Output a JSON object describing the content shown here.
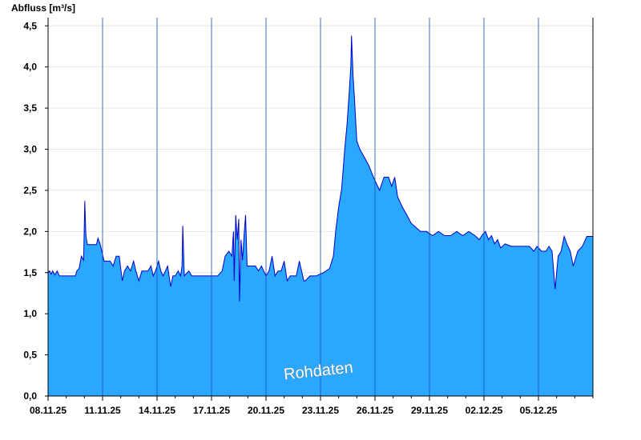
{
  "chart_data": {
    "type": "area",
    "ylabel": "Abfluss [m³/s]",
    "watermark": "Rohdaten",
    "ylim": [
      0,
      4.6
    ],
    "yticks": [
      0,
      0.5,
      1.0,
      1.5,
      2.0,
      2.5,
      3.0,
      3.5,
      4.0,
      4.5
    ],
    "ytick_labels": [
      "0,0",
      "0,5",
      "1,0",
      "1,5",
      "2,0",
      "2,5",
      "3,0",
      "3,5",
      "4,0",
      "4,5"
    ],
    "xlim": [
      "2025-11-08",
      "2025-12-08"
    ],
    "xticks": [
      "2025-11-08",
      "2025-11-11",
      "2025-11-14",
      "2025-11-17",
      "2025-11-20",
      "2025-11-23",
      "2025-11-26",
      "2025-11-29",
      "2025-12-02",
      "2025-12-05"
    ],
    "xtick_labels": [
      "08.11.25",
      "11.11.25",
      "14.11.25",
      "17.11.25",
      "20.11.25",
      "23.11.25",
      "26.11.25",
      "29.11.25",
      "02.12.25",
      "05.12.25"
    ],
    "grid": true,
    "fill_color": "#2aa7ff",
    "line_color": "#0000cc",
    "series": [
      {
        "points": [
          [
            "2025-11-08 00:00",
            1.5
          ],
          [
            "2025-11-08 02:00",
            1.52
          ],
          [
            "2025-11-08 04:00",
            1.48
          ],
          [
            "2025-11-08 06:00",
            1.52
          ],
          [
            "2025-11-08 09:00",
            1.47
          ],
          [
            "2025-11-08 12:00",
            1.52
          ],
          [
            "2025-11-08 15:00",
            1.46
          ],
          [
            "2025-11-08 20:00",
            1.46
          ],
          [
            "2025-11-09 04:00",
            1.46
          ],
          [
            "2025-11-09 12:00",
            1.46
          ],
          [
            "2025-11-09 14:00",
            1.52
          ],
          [
            "2025-11-09 17:00",
            1.55
          ],
          [
            "2025-11-09 20:00",
            1.7
          ],
          [
            "2025-11-09 23:00",
            1.65
          ],
          [
            "2025-11-10 00:30",
            2.37
          ],
          [
            "2025-11-10 02:00",
            1.95
          ],
          [
            "2025-11-10 04:00",
            1.84
          ],
          [
            "2025-11-10 10:00",
            1.84
          ],
          [
            "2025-11-10 16:00",
            1.84
          ],
          [
            "2025-11-10 18:00",
            1.92
          ],
          [
            "2025-11-10 21:00",
            1.84
          ],
          [
            "2025-11-11 02:00",
            1.64
          ],
          [
            "2025-11-11 10:00",
            1.64
          ],
          [
            "2025-11-11 14:00",
            1.58
          ],
          [
            "2025-11-11 18:00",
            1.7
          ],
          [
            "2025-11-11 22:00",
            1.7
          ],
          [
            "2025-11-12 02:00",
            1.4
          ],
          [
            "2025-11-12 05:00",
            1.52
          ],
          [
            "2025-11-12 09:00",
            1.58
          ],
          [
            "2025-11-12 13:00",
            1.52
          ],
          [
            "2025-11-12 17:00",
            1.64
          ],
          [
            "2025-11-12 20:00",
            1.52
          ],
          [
            "2025-11-13 00:00",
            1.4
          ],
          [
            "2025-11-13 04:00",
            1.52
          ],
          [
            "2025-11-13 08:00",
            1.52
          ],
          [
            "2025-11-13 12:00",
            1.52
          ],
          [
            "2025-11-13 16:00",
            1.58
          ],
          [
            "2025-11-13 19:00",
            1.46
          ],
          [
            "2025-11-13 22:00",
            1.52
          ],
          [
            "2025-11-14 02:00",
            1.64
          ],
          [
            "2025-11-14 05:00",
            1.52
          ],
          [
            "2025-11-14 08:00",
            1.46
          ],
          [
            "2025-11-14 11:00",
            1.52
          ],
          [
            "2025-11-14 14:00",
            1.58
          ],
          [
            "2025-11-14 18:00",
            1.33
          ],
          [
            "2025-11-14 21:00",
            1.46
          ],
          [
            "2025-11-15 00:00",
            1.46
          ],
          [
            "2025-11-15 04:00",
            1.52
          ],
          [
            "2025-11-15 07:00",
            1.46
          ],
          [
            "2025-11-15 09:00",
            1.58
          ],
          [
            "2025-11-15 10:00",
            2.07
          ],
          [
            "2025-11-15 12:00",
            1.46
          ],
          [
            "2025-11-15 18:00",
            1.52
          ],
          [
            "2025-11-15 22:00",
            1.46
          ],
          [
            "2025-11-16 08:00",
            1.46
          ],
          [
            "2025-11-16 20:00",
            1.46
          ],
          [
            "2025-11-17 08:00",
            1.46
          ],
          [
            "2025-11-17 14:00",
            1.52
          ],
          [
            "2025-11-17 18:00",
            1.7
          ],
          [
            "2025-11-17 23:00",
            1.76
          ],
          [
            "2025-11-18 03:00",
            1.7
          ],
          [
            "2025-11-18 05:00",
            2.0
          ],
          [
            "2025-11-18 06:00",
            1.4
          ],
          [
            "2025-11-18 08:00",
            2.2
          ],
          [
            "2025-11-18 10:00",
            1.9
          ],
          [
            "2025-11-18 12:00",
            2.15
          ],
          [
            "2025-11-18 13:00",
            1.15
          ],
          [
            "2025-11-18 15:00",
            1.9
          ],
          [
            "2025-11-18 17:00",
            1.65
          ],
          [
            "2025-11-18 19:00",
            1.95
          ],
          [
            "2025-11-18 21:00",
            2.2
          ],
          [
            "2025-11-18 23:00",
            1.58
          ],
          [
            "2025-11-19 04:00",
            1.58
          ],
          [
            "2025-11-19 10:00",
            1.58
          ],
          [
            "2025-11-19 14:00",
            1.52
          ],
          [
            "2025-11-19 18:00",
            1.58
          ],
          [
            "2025-11-20 00:00",
            1.46
          ],
          [
            "2025-11-20 04:00",
            1.52
          ],
          [
            "2025-11-20 08:00",
            1.7
          ],
          [
            "2025-11-20 12:00",
            1.46
          ],
          [
            "2025-11-20 16:00",
            1.52
          ],
          [
            "2025-11-20 20:00",
            1.52
          ],
          [
            "2025-11-21 00:00",
            1.64
          ],
          [
            "2025-11-21 04:00",
            1.4
          ],
          [
            "2025-11-21 08:00",
            1.46
          ],
          [
            "2025-11-21 16:00",
            1.46
          ],
          [
            "2025-11-21 20:00",
            1.64
          ],
          [
            "2025-11-21 23:00",
            1.52
          ],
          [
            "2025-11-22 02:00",
            1.4
          ],
          [
            "2025-11-22 04:00",
            1.4
          ],
          [
            "2025-11-22 10:00",
            1.46
          ],
          [
            "2025-11-22 18:00",
            1.46
          ],
          [
            "2025-11-23 04:00",
            1.5
          ],
          [
            "2025-11-23 12:00",
            1.55
          ],
          [
            "2025-11-23 17:00",
            1.7
          ],
          [
            "2025-11-23 20:00",
            2.0
          ],
          [
            "2025-11-24 00:00",
            2.3
          ],
          [
            "2025-11-24 04:00",
            2.52
          ],
          [
            "2025-11-24 08:00",
            3.0
          ],
          [
            "2025-11-24 11:00",
            3.3
          ],
          [
            "2025-11-24 14:00",
            3.7
          ],
          [
            "2025-11-24 16:00",
            4.0
          ],
          [
            "2025-11-24 17:00",
            4.38
          ],
          [
            "2025-11-24 19:00",
            3.9
          ],
          [
            "2025-11-24 21:00",
            3.6
          ],
          [
            "2025-11-25 00:00",
            3.1
          ],
          [
            "2025-11-25 04:00",
            3.0
          ],
          [
            "2025-11-25 10:00",
            2.9
          ],
          [
            "2025-11-25 16:00",
            2.8
          ],
          [
            "2025-11-25 22:00",
            2.66
          ],
          [
            "2025-11-26 06:00",
            2.5
          ],
          [
            "2025-11-26 12:00",
            2.66
          ],
          [
            "2025-11-26 18:00",
            2.66
          ],
          [
            "2025-11-26 22:00",
            2.55
          ],
          [
            "2025-11-27 02:00",
            2.66
          ],
          [
            "2025-11-27 06:00",
            2.42
          ],
          [
            "2025-11-27 12:00",
            2.3
          ],
          [
            "2025-11-27 18:00",
            2.2
          ],
          [
            "2025-11-28 00:00",
            2.1
          ],
          [
            "2025-11-28 06:00",
            2.05
          ],
          [
            "2025-11-28 12:00",
            2.0
          ],
          [
            "2025-11-28 20:00",
            2.0
          ],
          [
            "2025-11-29 04:00",
            1.95
          ],
          [
            "2025-11-29 12:00",
            2.0
          ],
          [
            "2025-11-29 20:00",
            1.95
          ],
          [
            "2025-11-30 04:00",
            1.95
          ],
          [
            "2025-11-30 12:00",
            2.0
          ],
          [
            "2025-11-30 20:00",
            1.95
          ],
          [
            "2025-12-01 04:00",
            2.0
          ],
          [
            "2025-12-01 12:00",
            1.95
          ],
          [
            "2025-12-01 18:00",
            1.9
          ],
          [
            "2025-12-01 21:00",
            1.95
          ],
          [
            "2025-12-02 02:00",
            2.0
          ],
          [
            "2025-12-02 06:00",
            1.9
          ],
          [
            "2025-12-02 10:00",
            1.95
          ],
          [
            "2025-12-02 14:00",
            1.85
          ],
          [
            "2025-12-02 18:00",
            1.9
          ],
          [
            "2025-12-02 22:00",
            1.8
          ],
          [
            "2025-12-03 04:00",
            1.85
          ],
          [
            "2025-12-03 12:00",
            1.82
          ],
          [
            "2025-12-03 20:00",
            1.82
          ],
          [
            "2025-12-04 04:00",
            1.82
          ],
          [
            "2025-12-04 12:00",
            1.82
          ],
          [
            "2025-12-04 18:00",
            1.76
          ],
          [
            "2025-12-04 22:00",
            1.82
          ],
          [
            "2025-12-05 04:00",
            1.76
          ],
          [
            "2025-12-05 10:00",
            1.76
          ],
          [
            "2025-12-05 14:00",
            1.82
          ],
          [
            "2025-12-05 18:00",
            1.76
          ],
          [
            "2025-12-05 22:00",
            1.3
          ],
          [
            "2025-12-06 02:00",
            1.7
          ],
          [
            "2025-12-06 06:00",
            1.76
          ],
          [
            "2025-12-06 10:00",
            1.94
          ],
          [
            "2025-12-06 14:00",
            1.84
          ],
          [
            "2025-12-06 18:00",
            1.76
          ],
          [
            "2025-12-06 22:00",
            1.58
          ],
          [
            "2025-12-07 04:00",
            1.76
          ],
          [
            "2025-12-07 10:00",
            1.82
          ],
          [
            "2025-12-07 16:00",
            1.94
          ],
          [
            "2025-12-08 00:00",
            1.94
          ]
        ]
      }
    ]
  }
}
